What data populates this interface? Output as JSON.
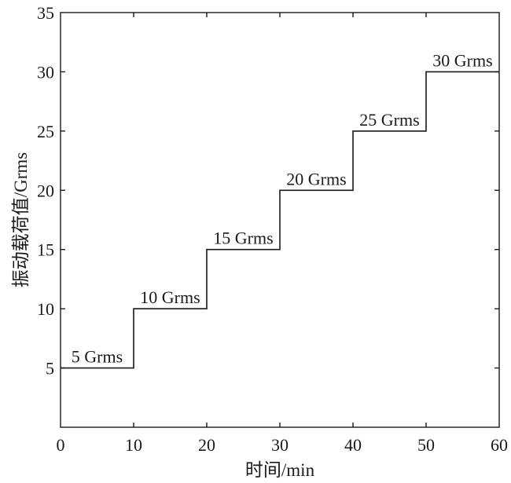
{
  "chart_data": {
    "type": "line",
    "step": true,
    "title": "",
    "xlabel": "时间/min",
    "ylabel": "振动载荷值/Grms",
    "xlim": [
      0,
      60
    ],
    "ylim": [
      0,
      35
    ],
    "xticks": [
      0,
      10,
      20,
      30,
      40,
      50,
      60
    ],
    "yticks": [
      5,
      10,
      15,
      20,
      25,
      30,
      35
    ],
    "grid": false,
    "line_color": "#1a1a1a",
    "series": [
      {
        "x": [
          0,
          10,
          10,
          20,
          20,
          30,
          30,
          40,
          40,
          50,
          50,
          60
        ],
        "y": [
          5,
          5,
          10,
          10,
          15,
          15,
          20,
          20,
          25,
          25,
          30,
          30
        ]
      }
    ],
    "annotations": [
      {
        "text": "5 Grms",
        "x": 5,
        "y": 5
      },
      {
        "text": "10 Grms",
        "x": 15,
        "y": 10
      },
      {
        "text": "15 Grms",
        "x": 25,
        "y": 15
      },
      {
        "text": "20 Grms",
        "x": 35,
        "y": 20
      },
      {
        "text": "25 Grms",
        "x": 45,
        "y": 25
      },
      {
        "text": "30 Grms",
        "x": 55,
        "y": 30
      }
    ]
  }
}
